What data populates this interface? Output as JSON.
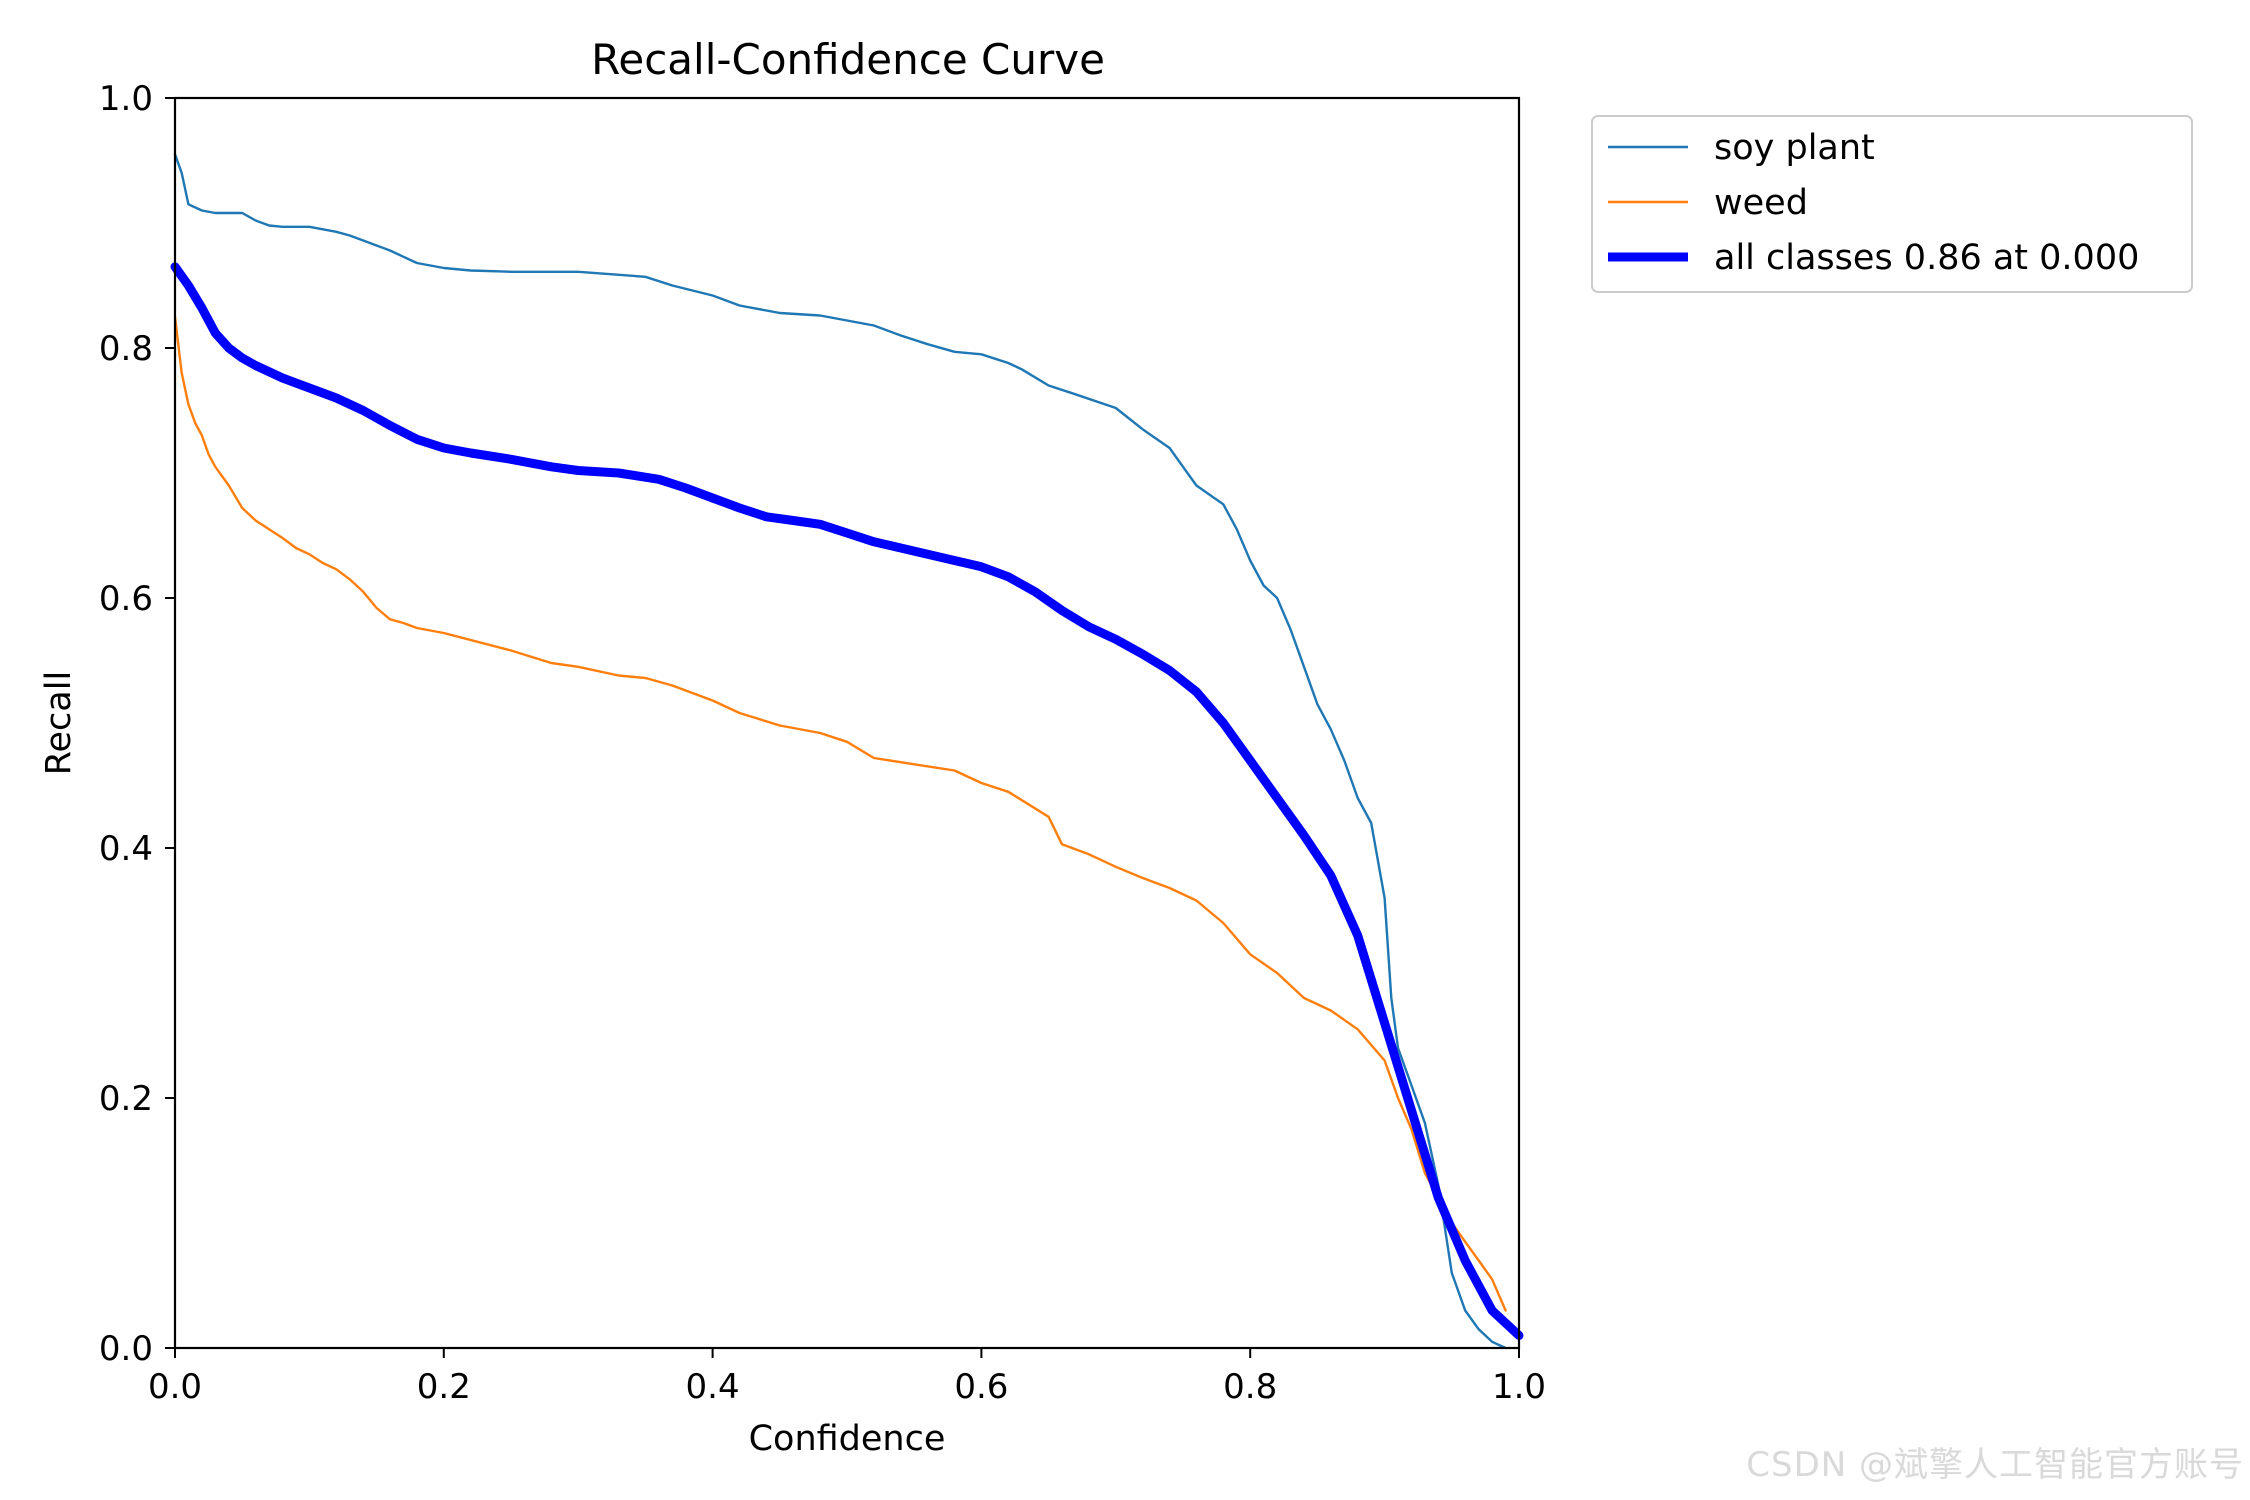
{
  "chart_data": {
    "type": "line",
    "title": "Recall-Confidence Curve",
    "xlabel": "Confidence",
    "ylabel": "Recall",
    "xlim": [
      0.0,
      1.0
    ],
    "ylim": [
      0.0,
      1.0
    ],
    "xticks": [
      "0.0",
      "0.2",
      "0.4",
      "0.6",
      "0.8",
      "1.0"
    ],
    "yticks": [
      "0.0",
      "0.2",
      "0.4",
      "0.6",
      "0.8",
      "1.0"
    ],
    "grid": false,
    "legend_position": "outside-top-right",
    "series": [
      {
        "name": "soy plant",
        "color": "#1f77b4",
        "width": "thin",
        "x": [
          0.0,
          0.005,
          0.01,
          0.02,
          0.03,
          0.05,
          0.06,
          0.07,
          0.08,
          0.1,
          0.12,
          0.13,
          0.14,
          0.15,
          0.16,
          0.17,
          0.18,
          0.19,
          0.2,
          0.22,
          0.25,
          0.3,
          0.35,
          0.37,
          0.4,
          0.42,
          0.45,
          0.48,
          0.5,
          0.52,
          0.54,
          0.56,
          0.58,
          0.6,
          0.62,
          0.63,
          0.65,
          0.67,
          0.7,
          0.72,
          0.74,
          0.75,
          0.76,
          0.78,
          0.79,
          0.8,
          0.81,
          0.82,
          0.83,
          0.84,
          0.85,
          0.86,
          0.87,
          0.88,
          0.89,
          0.9,
          0.905,
          0.91,
          0.92,
          0.93,
          0.94,
          0.95,
          0.96,
          0.97,
          0.98,
          0.99
        ],
        "y": [
          0.955,
          0.94,
          0.915,
          0.91,
          0.908,
          0.908,
          0.902,
          0.898,
          0.897,
          0.897,
          0.893,
          0.89,
          0.886,
          0.882,
          0.878,
          0.873,
          0.868,
          0.866,
          0.864,
          0.862,
          0.861,
          0.861,
          0.857,
          0.85,
          0.842,
          0.834,
          0.828,
          0.826,
          0.822,
          0.818,
          0.81,
          0.803,
          0.797,
          0.795,
          0.788,
          0.783,
          0.77,
          0.763,
          0.752,
          0.735,
          0.72,
          0.705,
          0.69,
          0.675,
          0.655,
          0.63,
          0.61,
          0.6,
          0.575,
          0.545,
          0.515,
          0.495,
          0.47,
          0.44,
          0.42,
          0.36,
          0.28,
          0.24,
          0.21,
          0.18,
          0.13,
          0.06,
          0.03,
          0.015,
          0.005,
          0.0
        ]
      },
      {
        "name": "weed",
        "color": "#ff7f0e",
        "width": "thin",
        "x": [
          0.0,
          0.005,
          0.01,
          0.015,
          0.02,
          0.025,
          0.03,
          0.04,
          0.05,
          0.06,
          0.07,
          0.08,
          0.09,
          0.1,
          0.11,
          0.12,
          0.13,
          0.14,
          0.15,
          0.16,
          0.17,
          0.18,
          0.2,
          0.25,
          0.28,
          0.3,
          0.33,
          0.35,
          0.37,
          0.4,
          0.42,
          0.45,
          0.48,
          0.5,
          0.52,
          0.55,
          0.58,
          0.6,
          0.62,
          0.65,
          0.66,
          0.68,
          0.7,
          0.72,
          0.74,
          0.76,
          0.78,
          0.8,
          0.82,
          0.84,
          0.86,
          0.88,
          0.9,
          0.91,
          0.92,
          0.93,
          0.94,
          0.95,
          0.96,
          0.97,
          0.98,
          0.99
        ],
        "y": [
          0.825,
          0.78,
          0.755,
          0.74,
          0.73,
          0.715,
          0.705,
          0.69,
          0.672,
          0.662,
          0.655,
          0.648,
          0.64,
          0.635,
          0.628,
          0.623,
          0.615,
          0.605,
          0.592,
          0.583,
          0.58,
          0.576,
          0.572,
          0.558,
          0.548,
          0.545,
          0.538,
          0.536,
          0.53,
          0.518,
          0.508,
          0.498,
          0.492,
          0.485,
          0.472,
          0.467,
          0.462,
          0.452,
          0.445,
          0.425,
          0.403,
          0.395,
          0.385,
          0.376,
          0.368,
          0.358,
          0.34,
          0.315,
          0.3,
          0.28,
          0.27,
          0.255,
          0.23,
          0.2,
          0.175,
          0.14,
          0.12,
          0.1,
          0.085,
          0.07,
          0.055,
          0.03
        ]
      },
      {
        "name": "all classes 0.86 at 0.000",
        "color": "#0000ff",
        "width": "thick",
        "x": [
          0.0,
          0.01,
          0.02,
          0.03,
          0.04,
          0.05,
          0.06,
          0.08,
          0.1,
          0.12,
          0.14,
          0.16,
          0.18,
          0.2,
          0.22,
          0.25,
          0.28,
          0.3,
          0.33,
          0.36,
          0.38,
          0.4,
          0.42,
          0.44,
          0.46,
          0.48,
          0.5,
          0.52,
          0.54,
          0.56,
          0.58,
          0.6,
          0.62,
          0.64,
          0.66,
          0.68,
          0.7,
          0.72,
          0.74,
          0.76,
          0.78,
          0.8,
          0.82,
          0.84,
          0.86,
          0.88,
          0.9,
          0.92,
          0.94,
          0.96,
          0.98,
          1.0
        ],
        "y": [
          0.865,
          0.85,
          0.832,
          0.812,
          0.8,
          0.792,
          0.786,
          0.776,
          0.768,
          0.76,
          0.75,
          0.738,
          0.727,
          0.72,
          0.716,
          0.711,
          0.705,
          0.702,
          0.7,
          0.695,
          0.688,
          0.68,
          0.672,
          0.665,
          0.662,
          0.659,
          0.652,
          0.645,
          0.64,
          0.635,
          0.63,
          0.625,
          0.617,
          0.605,
          0.59,
          0.577,
          0.567,
          0.555,
          0.542,
          0.525,
          0.5,
          0.47,
          0.44,
          0.41,
          0.378,
          0.33,
          0.26,
          0.19,
          0.12,
          0.07,
          0.03,
          0.01
        ]
      }
    ]
  },
  "watermark": "CSDN @斌擎人工智能官方账号"
}
